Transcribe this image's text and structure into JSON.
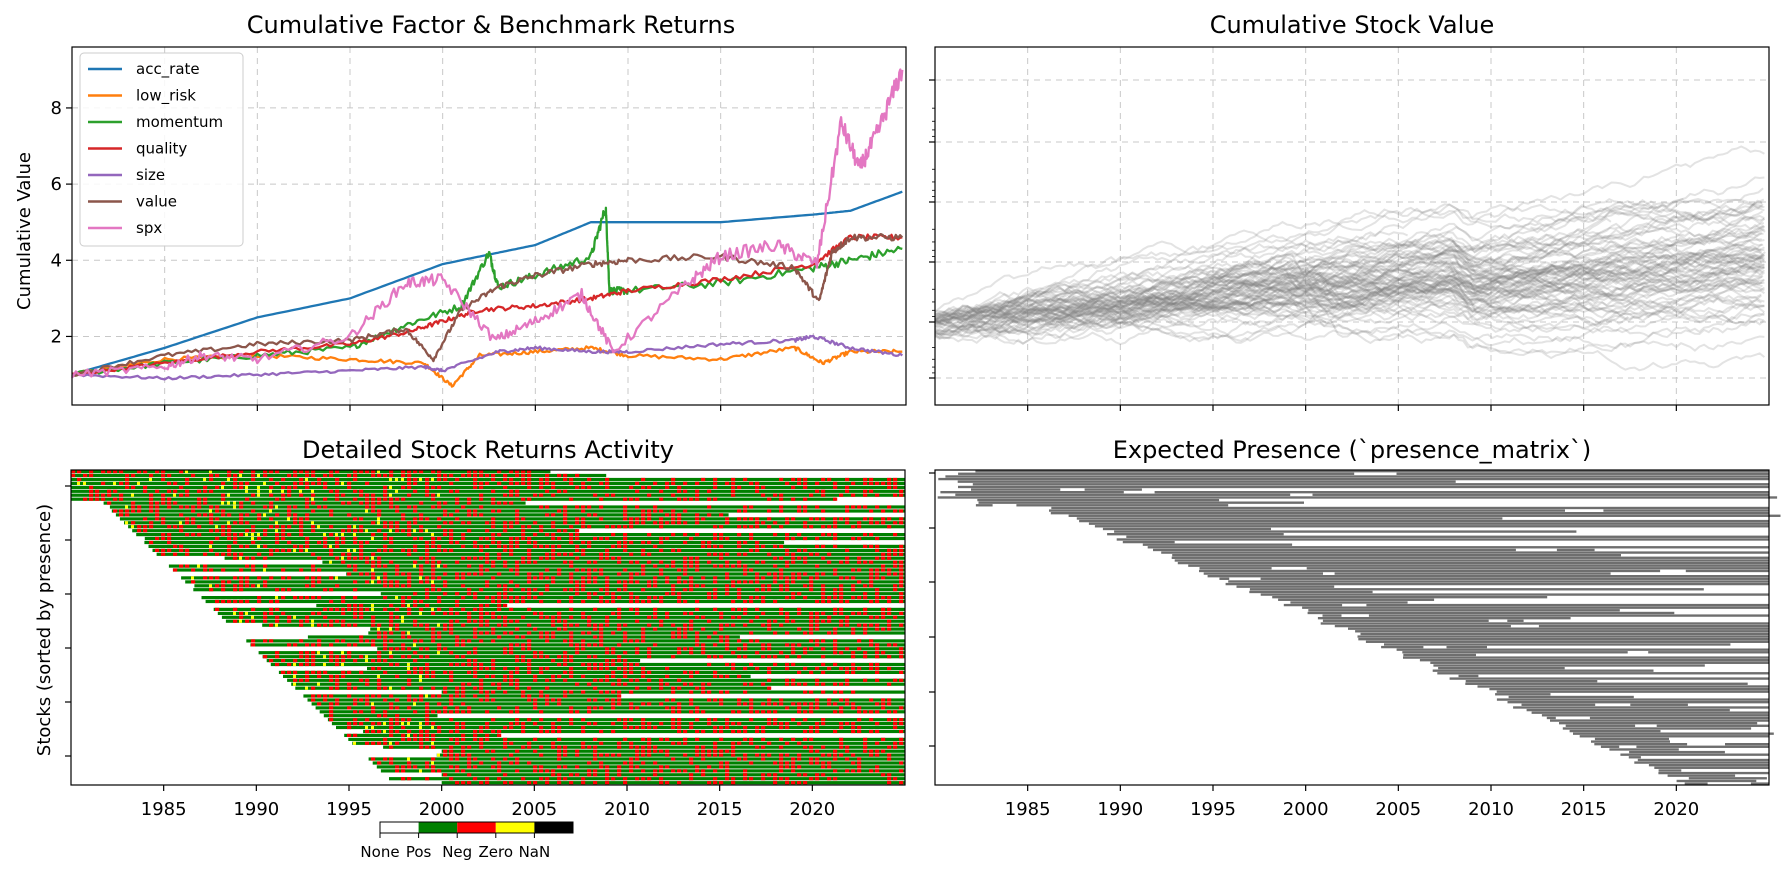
{
  "panels": {
    "factor": {
      "title": "Cumulative Factor & Benchmark Returns",
      "ylabel": "Cumulative Value",
      "y_ticks": [
        "2",
        "4",
        "6",
        "8"
      ]
    },
    "stock_value": {
      "title": "Cumulative Stock Value"
    },
    "activity": {
      "title": "Detailed Stock Returns Activity",
      "ylabel": "Stocks (sorted by presence)"
    },
    "presence": {
      "title": "Expected Presence (`presence_matrix`)"
    }
  },
  "x_ticks": [
    "1985",
    "1990",
    "1995",
    "2000",
    "2005",
    "2010",
    "2015",
    "2020"
  ],
  "colorbar": {
    "labels": [
      "None",
      "Pos",
      "Neg",
      "Zero",
      "NaN"
    ],
    "colors": [
      "#ffffff",
      "#008000",
      "#ff0000",
      "#ffff00",
      "#000000"
    ]
  },
  "chart_data": [
    {
      "type": "line",
      "title": "Cumulative Factor & Benchmark Returns",
      "xlabel": "",
      "ylabel": "Cumulative Value",
      "xlim": [
        1980,
        2025
      ],
      "ylim": [
        0.2,
        9.6
      ],
      "grid": true,
      "legend_position": "top-left",
      "series": [
        {
          "name": "acc_rate",
          "color": "#1f77b4",
          "x": [
            1980,
            1985,
            1990,
            1995,
            2000,
            2003,
            2005,
            2008,
            2010,
            2015,
            2020,
            2022,
            2024.8
          ],
          "y": [
            1.0,
            1.7,
            2.5,
            3.0,
            3.9,
            4.2,
            4.4,
            5.0,
            5.0,
            5.0,
            5.2,
            5.3,
            5.8
          ]
        },
        {
          "name": "low_risk",
          "color": "#ff7f0e",
          "x": [
            1980,
            1985,
            1990,
            1995,
            1999,
            2000.5,
            2002,
            2005,
            2008,
            2010,
            2015,
            2019,
            2020.5,
            2022,
            2024.8
          ],
          "y": [
            1.0,
            1.4,
            1.5,
            1.4,
            1.3,
            0.7,
            1.5,
            1.6,
            1.7,
            1.5,
            1.4,
            1.7,
            1.3,
            1.6,
            1.6
          ]
        },
        {
          "name": "momentum",
          "color": "#2ca02c",
          "x": [
            1980,
            1985,
            1990,
            1995,
            1998,
            2001,
            2002.5,
            2003,
            2005,
            2008,
            2008.8,
            2009,
            2010,
            2015,
            2020,
            2022,
            2024.8
          ],
          "y": [
            1.0,
            1.3,
            1.5,
            1.7,
            2.3,
            2.8,
            4.2,
            3.3,
            3.6,
            4.1,
            5.4,
            3.2,
            3.2,
            3.4,
            3.8,
            4.0,
            4.3
          ]
        },
        {
          "name": "quality",
          "color": "#d62728",
          "x": [
            1980,
            1985,
            1990,
            1995,
            1998,
            2000,
            2002,
            2005,
            2008,
            2010,
            2015,
            2020,
            2022,
            2024.8
          ],
          "y": [
            1.0,
            1.3,
            1.6,
            1.8,
            2.1,
            2.4,
            2.7,
            2.8,
            3.0,
            3.2,
            3.5,
            3.9,
            4.6,
            4.6
          ]
        },
        {
          "name": "size",
          "color": "#9467bd",
          "x": [
            1980,
            1985,
            1990,
            1995,
            1999,
            2000,
            2003,
            2005,
            2008,
            2010,
            2015,
            2019,
            2020,
            2022,
            2024.8
          ],
          "y": [
            1.0,
            0.9,
            1.0,
            1.1,
            1.2,
            1.1,
            1.6,
            1.7,
            1.6,
            1.6,
            1.8,
            1.9,
            2.0,
            1.7,
            1.5
          ]
        },
        {
          "name": "value",
          "color": "#8c564b",
          "x": [
            1980,
            1985,
            1990,
            1995,
            1998,
            1999.5,
            2001,
            2003,
            2005,
            2008,
            2010,
            2015,
            2019,
            2020.3,
            2021,
            2022,
            2024.8
          ],
          "y": [
            1.0,
            1.5,
            1.8,
            1.9,
            2.2,
            1.4,
            2.7,
            3.3,
            3.6,
            3.9,
            4.0,
            4.1,
            3.8,
            2.9,
            4.2,
            4.6,
            4.6
          ]
        },
        {
          "name": "spx",
          "color": "#e377c2",
          "x": [
            1980,
            1985,
            1987,
            1990,
            1995,
            1998,
            2000,
            2002.8,
            2005,
            2007.5,
            2009.2,
            2013,
            2015,
            2018,
            2020.2,
            2021.5,
            2022.5,
            2023.5,
            2024.8
          ],
          "y": [
            1.0,
            1.2,
            1.5,
            1.4,
            2.0,
            3.4,
            3.5,
            1.9,
            2.4,
            3.1,
            1.6,
            3.3,
            4.1,
            4.4,
            3.9,
            7.6,
            6.4,
            7.4,
            9.0
          ]
        }
      ]
    },
    {
      "type": "line",
      "title": "Cumulative Stock Value",
      "description_series": "approximately 100 individual stock paths drawn in translucent grey on a log-scale y axis with unlabeled ticks",
      "xlim": [
        1980,
        2025
      ],
      "y_scale": "log",
      "grid": true,
      "series_color": "#808080"
    },
    {
      "type": "heatmap",
      "title": "Detailed Stock Returns Activity",
      "ylabel": "Stocks (sorted by presence)",
      "xlim": [
        1980,
        2025
      ],
      "categories": [
        "None",
        "Pos",
        "Neg",
        "Zero",
        "NaN"
      ],
      "colors": [
        "#ffffff",
        "#008000",
        "#ff0000",
        "#ffff00",
        "#000000"
      ]
    },
    {
      "type": "heatmap",
      "title": "Expected Presence (`presence_matrix`)",
      "xlim": [
        1980,
        2025
      ],
      "colors": [
        "#ffffff",
        "#6e6e6e"
      ]
    }
  ]
}
